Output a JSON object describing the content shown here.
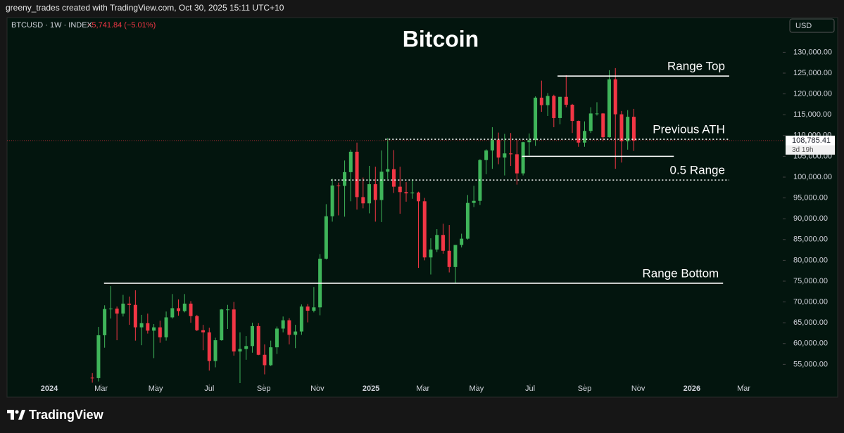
{
  "header": "greeny_trades created with TradingView.com, Oct 30, 2025 15:11 UTC+10",
  "footer": "TradingView",
  "chart_data": {
    "type": "candlestick",
    "title": "Bitcoin",
    "symbol": "BTCUSD · 1W · INDEX",
    "change_label": "−5,741.84 (−5.01%)",
    "currency": "USD",
    "up_color": "#3fb55a",
    "down_color": "#f23645",
    "grid": false,
    "open": [
      51800,
      51700,
      62000,
      68300,
      68400,
      67200,
      69600,
      69300,
      63900,
      64900,
      63100,
      63900,
      61500,
      66300,
      68500,
      67800,
      69600,
      66600,
      63200,
      62700,
      55800,
      60800,
      68200,
      68200,
      58100,
      58700,
      59400,
      64200,
      57300,
      54800,
      59100,
      63600,
      65600,
      62100,
      62900,
      68900,
      67900,
      68700,
      80400,
      90600,
      98000,
      97900,
      101200,
      106100,
      95200,
      93700,
      98300,
      94500,
      101300,
      101900,
      97700,
      96400,
      96100,
      96300,
      94200,
      80700,
      82600,
      86100,
      82300,
      78400,
      83700,
      85200,
      93800,
      94300,
      104100,
      106400,
      109000,
      104700,
      105700,
      105500,
      100900,
      108400,
      108900,
      119100,
      117300,
      119500,
      114200,
      119300,
      117400,
      113500,
      108300,
      111100,
      115300,
      115300,
      109600,
      123500,
      115100,
      108600,
      114500
    ],
    "high": [
      52900,
      64000,
      69200,
      73800,
      68900,
      71700,
      71300,
      72800,
      66900,
      67200,
      64700,
      65500,
      67700,
      71900,
      70600,
      71900,
      70200,
      66900,
      64500,
      63800,
      61400,
      68300,
      69300,
      70000,
      62700,
      61800,
      65000,
      64900,
      59800,
      60700,
      64100,
      66500,
      66100,
      64500,
      69400,
      69500,
      73600,
      81500,
      93500,
      99600,
      98700,
      104000,
      106600,
      108300,
      99900,
      102700,
      102500,
      106400,
      109400,
      106500,
      102500,
      98800,
      99500,
      96500,
      95000,
      85300,
      87500,
      88800,
      88500,
      83500,
      86400,
      95700,
      97900,
      104300,
      106700,
      112000,
      110700,
      110400,
      110600,
      108900,
      108500,
      110500,
      119400,
      123200,
      120200,
      119800,
      119300,
      124500,
      117600,
      113600,
      113400,
      116800,
      118000,
      115400,
      125700,
      126200,
      115900,
      116100,
      116400
    ],
    "low": [
      50600,
      50900,
      59000,
      66000,
      60800,
      66500,
      64500,
      60700,
      59600,
      62400,
      56500,
      60200,
      60700,
      66000,
      66700,
      67500,
      65000,
      63000,
      58400,
      53500,
      54300,
      60700,
      63500,
      57100,
      49000,
      56100,
      57800,
      57200,
      52600,
      54600,
      57500,
      62700,
      59800,
      58900,
      62100,
      65100,
      67500,
      66800,
      80200,
      89300,
      90800,
      90500,
      94200,
      92200,
      92500,
      91300,
      89300,
      89200,
      99500,
      96200,
      91200,
      94100,
      94800,
      78200,
      80000,
      76600,
      82000,
      81600,
      77100,
      74400,
      83100,
      85000,
      92800,
      93300,
      100700,
      102000,
      103100,
      100400,
      102700,
      98200,
      100400,
      105200,
      107500,
      115700,
      114700,
      112000,
      112700,
      116800,
      110600,
      107300,
      107300,
      110600,
      114800,
      108600,
      109500,
      102000,
      103500,
      106600,
      106300
    ],
    "close": [
      51700,
      62000,
      68300,
      68400,
      67200,
      69600,
      69300,
      63900,
      64900,
      63100,
      63900,
      61500,
      66300,
      68500,
      67800,
      69600,
      66600,
      63200,
      62700,
      55800,
      60800,
      68200,
      68200,
      58100,
      58700,
      59400,
      64200,
      57300,
      54800,
      59100,
      63600,
      65600,
      62100,
      62900,
      68900,
      67900,
      68700,
      80400,
      90600,
      98000,
      97900,
      101200,
      106100,
      95200,
      93700,
      98300,
      94500,
      101300,
      101900,
      97700,
      96400,
      96100,
      96300,
      94200,
      80700,
      82600,
      86100,
      82300,
      78400,
      83700,
      85200,
      93800,
      94300,
      104100,
      106400,
      109000,
      104700,
      105700,
      105500,
      100900,
      108400,
      108900,
      119100,
      117300,
      119500,
      114200,
      119300,
      117400,
      113500,
      108300,
      111100,
      115300,
      115300,
      109600,
      123500,
      115100,
      108600,
      114500,
      108785.41
    ],
    "last_price": {
      "value": 108785.41,
      "label": "108,785.41"
    },
    "countdown": "3d 19h",
    "xlim": [
      -13.86,
      112.2
    ],
    "xticks": [
      {
        "value": -7,
        "label": "2024",
        "bold": true
      },
      {
        "value": 1.43,
        "label": "Mar"
      },
      {
        "value": 10.29,
        "label": "May"
      },
      {
        "value": 19,
        "label": "Jul"
      },
      {
        "value": 27.86,
        "label": "Sep"
      },
      {
        "value": 36.57,
        "label": "Nov"
      },
      {
        "value": 45.29,
        "label": "2025",
        "bold": true
      },
      {
        "value": 53.71,
        "label": "Mar"
      },
      {
        "value": 62.43,
        "label": "May"
      },
      {
        "value": 71.14,
        "label": "Jul"
      },
      {
        "value": 80,
        "label": "Sep"
      },
      {
        "value": 88.71,
        "label": "Nov"
      },
      {
        "value": 97.43,
        "label": "2026",
        "bold": true
      },
      {
        "value": 105.86,
        "label": "Mar"
      }
    ],
    "ylim": [
      50500,
      137500
    ],
    "yticks": [
      {
        "value": 55000,
        "label": "55,000.00"
      },
      {
        "value": 60000,
        "label": "60,000.00"
      },
      {
        "value": 65000,
        "label": "65,000.00"
      },
      {
        "value": 70000,
        "label": "70,000.00"
      },
      {
        "value": 75000,
        "label": "75,000.00"
      },
      {
        "value": 80000,
        "label": "80,000.00"
      },
      {
        "value": 85000,
        "label": "85,000.00"
      },
      {
        "value": 90000,
        "label": "90,000.00"
      },
      {
        "value": 95000,
        "label": "95,000.00"
      },
      {
        "value": 100000,
        "label": "100,000.00"
      },
      {
        "value": 105000,
        "label": "105,000.00"
      },
      {
        "value": 110000,
        "label": "110,000.00"
      },
      {
        "value": 115000,
        "label": "115,000.00"
      },
      {
        "value": 120000,
        "label": "120,000.00"
      },
      {
        "value": 125000,
        "label": "125,000.00"
      },
      {
        "value": 130000,
        "label": "130,000.00"
      }
    ],
    "lines": [
      {
        "label": "Range Top",
        "value": 124300,
        "x": [
          75.6,
          103.5
        ],
        "style": "solid"
      },
      {
        "label": "Previous ATH",
        "value": 109100,
        "x": [
          47.6,
          103.5
        ],
        "style": "dotted"
      },
      {
        "value": 105000,
        "x": [
          69.8,
          94.5
        ],
        "style": "solid"
      },
      {
        "label": "0.5 Range",
        "value": 99300,
        "x": [
          38.8,
          103.5
        ],
        "style": "dotted"
      },
      {
        "label": "Range Bottom",
        "value": 74500,
        "x": [
          1.9,
          102.5
        ],
        "style": "solid"
      }
    ]
  }
}
